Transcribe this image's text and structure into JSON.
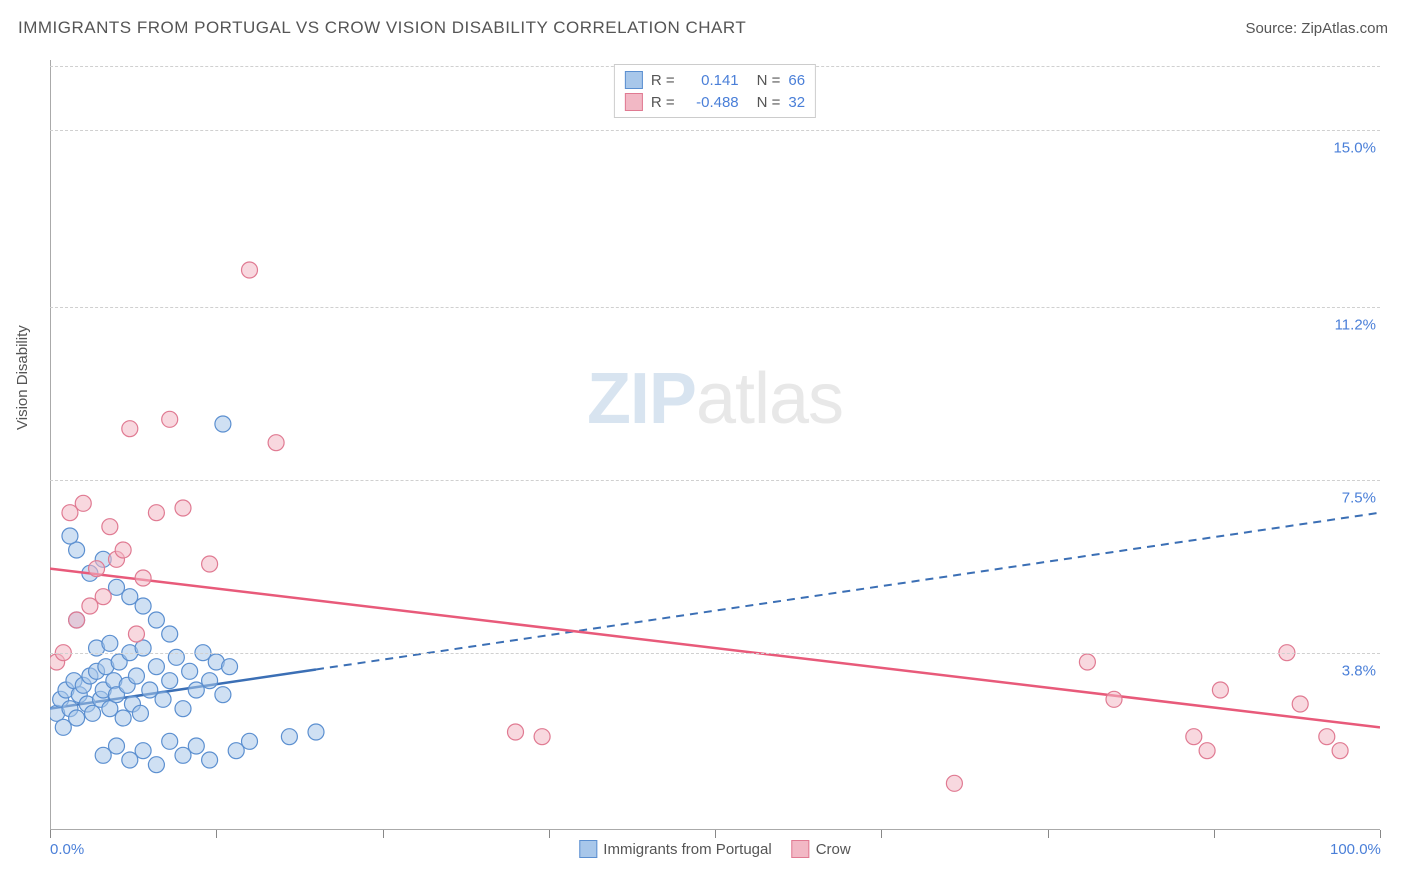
{
  "title": "IMMIGRANTS FROM PORTUGAL VS CROW VISION DISABILITY CORRELATION CHART",
  "source": "Source: ZipAtlas.com",
  "watermark": {
    "zip": "ZIP",
    "atlas": "atlas"
  },
  "y_axis_label": "Vision Disability",
  "chart": {
    "type": "scatter",
    "xlim": [
      0,
      100
    ],
    "ylim": [
      0,
      16.5
    ],
    "x_tick_positions": [
      0,
      12.5,
      25,
      37.5,
      50,
      62.5,
      75,
      87.5,
      100
    ],
    "x_tick_labels_shown": {
      "0": "0.0%",
      "100": "100.0%"
    },
    "y_ticks": [
      {
        "v": 3.8,
        "label": "3.8%"
      },
      {
        "v": 7.5,
        "label": "7.5%"
      },
      {
        "v": 11.2,
        "label": "11.2%"
      },
      {
        "v": 15.0,
        "label": "15.0%"
      }
    ],
    "grid_color": "#d8d8d8",
    "background_color": "#ffffff",
    "marker_radius": 8,
    "marker_opacity": 0.55,
    "series": [
      {
        "name": "Immigrants from Portugal",
        "color_fill": "#a8c7ea",
        "color_stroke": "#5b8fd0",
        "r_label": "R =",
        "r_value": "0.141",
        "n_label": "N =",
        "n_value": "66",
        "trend": {
          "x1": 0,
          "y1": 2.6,
          "x2": 100,
          "y2": 6.8,
          "solid_until_x": 20,
          "color": "#3b6fb5",
          "width": 2.5
        },
        "points": [
          [
            0.5,
            2.5
          ],
          [
            0.8,
            2.8
          ],
          [
            1.0,
            2.2
          ],
          [
            1.2,
            3.0
          ],
          [
            1.5,
            2.6
          ],
          [
            1.8,
            3.2
          ],
          [
            2.0,
            2.4
          ],
          [
            2.2,
            2.9
          ],
          [
            2.5,
            3.1
          ],
          [
            2.8,
            2.7
          ],
          [
            3.0,
            3.3
          ],
          [
            3.2,
            2.5
          ],
          [
            3.5,
            3.4
          ],
          [
            3.8,
            2.8
          ],
          [
            4.0,
            3.0
          ],
          [
            4.2,
            3.5
          ],
          [
            4.5,
            2.6
          ],
          [
            4.8,
            3.2
          ],
          [
            5.0,
            2.9
          ],
          [
            5.2,
            3.6
          ],
          [
            5.5,
            2.4
          ],
          [
            5.8,
            3.1
          ],
          [
            6.0,
            3.8
          ],
          [
            6.2,
            2.7
          ],
          [
            6.5,
            3.3
          ],
          [
            6.8,
            2.5
          ],
          [
            7.0,
            3.9
          ],
          [
            7.5,
            3.0
          ],
          [
            8.0,
            3.5
          ],
          [
            8.5,
            2.8
          ],
          [
            9.0,
            3.2
          ],
          [
            9.5,
            3.7
          ],
          [
            10.0,
            2.6
          ],
          [
            10.5,
            3.4
          ],
          [
            11.0,
            3.0
          ],
          [
            11.5,
            3.8
          ],
          [
            12.0,
            3.2
          ],
          [
            12.5,
            3.6
          ],
          [
            13.0,
            2.9
          ],
          [
            13.5,
            3.5
          ],
          [
            4.0,
            1.6
          ],
          [
            5.0,
            1.8
          ],
          [
            6.0,
            1.5
          ],
          [
            7.0,
            1.7
          ],
          [
            8.0,
            1.4
          ],
          [
            9.0,
            1.9
          ],
          [
            10.0,
            1.6
          ],
          [
            11.0,
            1.8
          ],
          [
            12.0,
            1.5
          ],
          [
            14.0,
            1.7
          ],
          [
            15.0,
            1.9
          ],
          [
            2.0,
            6.0
          ],
          [
            3.0,
            5.5
          ],
          [
            4.0,
            5.8
          ],
          [
            5.0,
            5.2
          ],
          [
            1.5,
            6.3
          ],
          [
            6.0,
            5.0
          ],
          [
            7.0,
            4.8
          ],
          [
            8.0,
            4.5
          ],
          [
            9.0,
            4.2
          ],
          [
            13.0,
            8.7
          ],
          [
            3.5,
            3.9
          ],
          [
            4.5,
            4.0
          ],
          [
            2.0,
            4.5
          ],
          [
            18.0,
            2.0
          ],
          [
            20.0,
            2.1
          ]
        ]
      },
      {
        "name": "Crow",
        "color_fill": "#f2b8c5",
        "color_stroke": "#e07a92",
        "r_label": "R =",
        "r_value": "-0.488",
        "n_label": "N =",
        "n_value": "32",
        "trend": {
          "x1": 0,
          "y1": 5.6,
          "x2": 100,
          "y2": 2.2,
          "solid_until_x": 100,
          "color": "#e85a7a",
          "width": 2.5
        },
        "points": [
          [
            0.5,
            3.6
          ],
          [
            1.0,
            3.8
          ],
          [
            1.5,
            6.8
          ],
          [
            2.0,
            4.5
          ],
          [
            2.5,
            7.0
          ],
          [
            3.0,
            4.8
          ],
          [
            3.5,
            5.6
          ],
          [
            4.0,
            5.0
          ],
          [
            4.5,
            6.5
          ],
          [
            5.0,
            5.8
          ],
          [
            5.5,
            6.0
          ],
          [
            6.0,
            8.6
          ],
          [
            6.5,
            4.2
          ],
          [
            7.0,
            5.4
          ],
          [
            8.0,
            6.8
          ],
          [
            9.0,
            8.8
          ],
          [
            10.0,
            6.9
          ],
          [
            12.0,
            5.7
          ],
          [
            15.0,
            12.0
          ],
          [
            17.0,
            8.3
          ],
          [
            35.0,
            2.1
          ],
          [
            37.0,
            2.0
          ],
          [
            68.0,
            1.0
          ],
          [
            78.0,
            3.6
          ],
          [
            80.0,
            2.8
          ],
          [
            86.0,
            2.0
          ],
          [
            87.0,
            1.7
          ],
          [
            88.0,
            3.0
          ],
          [
            93.0,
            3.8
          ],
          [
            94.0,
            2.7
          ],
          [
            96.0,
            2.0
          ],
          [
            97.0,
            1.7
          ]
        ]
      }
    ]
  },
  "bottom_legend": [
    {
      "label": "Immigrants from Portugal",
      "fill": "#a8c7ea",
      "stroke": "#5b8fd0"
    },
    {
      "label": "Crow",
      "fill": "#f2b8c5",
      "stroke": "#e07a92"
    }
  ]
}
